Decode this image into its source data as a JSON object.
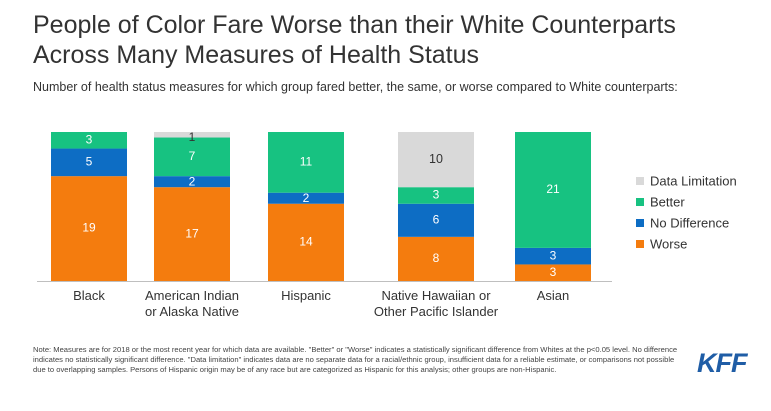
{
  "title": "People of Color Fare Worse than their White Counterparts Across Many Measures of Health Status",
  "subtitle": "Number of health status measures for which group fared better, the same, or worse compared to White counterparts:",
  "footnote": "Note: Measures are for 2018 or the most recent year for which data are available. \"Better\" or \"Worse\" indicates a statistically significant difference from Whites at the p<0.05 level. No difference indicates no statistically significant difference. \"Data limitation\" indicates data are no separate data for a racial/ethnic group, insufficient data for a reliable estimate, or comparisons not possible due to overlapping samples. Persons of Hispanic origin may be of any race but are categorized as Hispanic for this analysis; other groups are non-Hispanic.",
  "logo": "KFF",
  "colors": {
    "Worse": "#f47c0e",
    "No Difference": "#0d6dc4",
    "Better": "#17c281",
    "Data Limitation": "#d9d9d9"
  },
  "chart_data": {
    "type": "bar",
    "stacked": true,
    "categories": [
      [
        "Black"
      ],
      [
        "American Indian",
        "or Alaska Native"
      ],
      [
        "Hispanic"
      ],
      [
        "Native Hawaiian or",
        "Other Pacific Islander"
      ],
      [
        "Asian"
      ]
    ],
    "series": [
      {
        "name": "Worse",
        "values": [
          19,
          17,
          14,
          8,
          3
        ]
      },
      {
        "name": "No Difference",
        "values": [
          5,
          2,
          2,
          6,
          3
        ]
      },
      {
        "name": "Better",
        "values": [
          3,
          7,
          11,
          3,
          21
        ]
      },
      {
        "name": "Data Limitation",
        "values": [
          0,
          1,
          0,
          10,
          0
        ]
      }
    ],
    "legend": [
      "Data Limitation",
      "Better",
      "No Difference",
      "Worse"
    ],
    "legend_position": "right",
    "ylim": [
      0,
      27
    ]
  }
}
